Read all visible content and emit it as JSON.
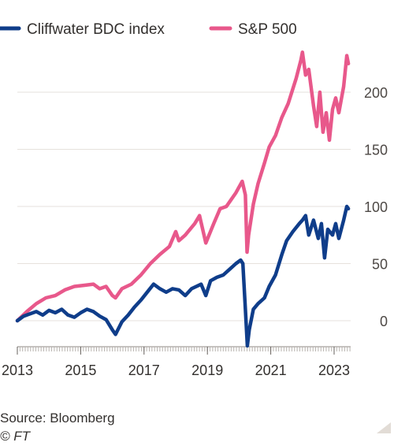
{
  "source": "Source: Bloomberg",
  "copyright": "© FT",
  "chart_data": {
    "type": "line",
    "title": "",
    "xlabel": "",
    "ylabel": "",
    "xlim": [
      2012.9,
      2023.5
    ],
    "ylim": [
      -24,
      240
    ],
    "y_ticks": [
      0,
      50,
      100,
      150,
      200
    ],
    "x_ticks": [
      "2013",
      "2015",
      "2017",
      "2019",
      "2021",
      "2023"
    ],
    "grid": "horizontal",
    "legend_position": "top-left",
    "series": [
      {
        "name": "Cliffwater BDC index",
        "color": "#0f3d8a",
        "points": [
          [
            2013.0,
            0
          ],
          [
            2013.2,
            4
          ],
          [
            2013.4,
            6
          ],
          [
            2013.6,
            8
          ],
          [
            2013.8,
            5
          ],
          [
            2014.0,
            9
          ],
          [
            2014.2,
            7
          ],
          [
            2014.4,
            10
          ],
          [
            2014.6,
            5
          ],
          [
            2014.8,
            3
          ],
          [
            2015.0,
            7
          ],
          [
            2015.2,
            10
          ],
          [
            2015.4,
            8
          ],
          [
            2015.6,
            4
          ],
          [
            2015.8,
            1
          ],
          [
            2016.0,
            -8
          ],
          [
            2016.1,
            -12
          ],
          [
            2016.3,
            -1
          ],
          [
            2016.5,
            5
          ],
          [
            2016.7,
            12
          ],
          [
            2016.9,
            18
          ],
          [
            2017.1,
            25
          ],
          [
            2017.3,
            32
          ],
          [
            2017.5,
            28
          ],
          [
            2017.7,
            25
          ],
          [
            2017.9,
            28
          ],
          [
            2018.1,
            27
          ],
          [
            2018.3,
            22
          ],
          [
            2018.5,
            28
          ],
          [
            2018.8,
            32
          ],
          [
            2018.95,
            22
          ],
          [
            2019.1,
            35
          ],
          [
            2019.3,
            38
          ],
          [
            2019.5,
            40
          ],
          [
            2019.7,
            45
          ],
          [
            2019.9,
            50
          ],
          [
            2020.05,
            53
          ],
          [
            2020.12,
            50
          ],
          [
            2020.2,
            10
          ],
          [
            2020.26,
            -22
          ],
          [
            2020.32,
            -8
          ],
          [
            2020.45,
            10
          ],
          [
            2020.6,
            15
          ],
          [
            2020.8,
            20
          ],
          [
            2020.95,
            30
          ],
          [
            2021.15,
            40
          ],
          [
            2021.35,
            58
          ],
          [
            2021.5,
            70
          ],
          [
            2021.7,
            78
          ],
          [
            2021.9,
            85
          ],
          [
            2022.0,
            88
          ],
          [
            2022.1,
            92
          ],
          [
            2022.2,
            75
          ],
          [
            2022.35,
            88
          ],
          [
            2022.5,
            72
          ],
          [
            2022.6,
            85
          ],
          [
            2022.7,
            55
          ],
          [
            2022.8,
            80
          ],
          [
            2022.95,
            75
          ],
          [
            2023.05,
            85
          ],
          [
            2023.15,
            72
          ],
          [
            2023.3,
            88
          ],
          [
            2023.4,
            100
          ],
          [
            2023.45,
            98
          ]
        ]
      },
      {
        "name": "S&P 500",
        "color": "#e8588b",
        "points": [
          [
            2013.0,
            0
          ],
          [
            2013.3,
            8
          ],
          [
            2013.6,
            15
          ],
          [
            2013.9,
            20
          ],
          [
            2014.2,
            22
          ],
          [
            2014.5,
            27
          ],
          [
            2014.8,
            30
          ],
          [
            2015.1,
            31
          ],
          [
            2015.4,
            32
          ],
          [
            2015.6,
            28
          ],
          [
            2015.8,
            30
          ],
          [
            2016.0,
            22
          ],
          [
            2016.1,
            20
          ],
          [
            2016.3,
            28
          ],
          [
            2016.6,
            32
          ],
          [
            2016.9,
            40
          ],
          [
            2017.2,
            50
          ],
          [
            2017.5,
            58
          ],
          [
            2017.8,
            65
          ],
          [
            2018.0,
            78
          ],
          [
            2018.1,
            70
          ],
          [
            2018.3,
            75
          ],
          [
            2018.6,
            85
          ],
          [
            2018.75,
            92
          ],
          [
            2018.95,
            68
          ],
          [
            2019.2,
            85
          ],
          [
            2019.4,
            98
          ],
          [
            2019.6,
            100
          ],
          [
            2019.9,
            112
          ],
          [
            2020.1,
            122
          ],
          [
            2020.2,
            110
          ],
          [
            2020.25,
            60
          ],
          [
            2020.3,
            75
          ],
          [
            2020.45,
            102
          ],
          [
            2020.6,
            120
          ],
          [
            2020.8,
            138
          ],
          [
            2020.95,
            152
          ],
          [
            2021.15,
            162
          ],
          [
            2021.35,
            178
          ],
          [
            2021.55,
            190
          ],
          [
            2021.8,
            212
          ],
          [
            2021.95,
            228
          ],
          [
            2022.0,
            235
          ],
          [
            2022.1,
            215
          ],
          [
            2022.2,
            220
          ],
          [
            2022.35,
            188
          ],
          [
            2022.45,
            170
          ],
          [
            2022.55,
            200
          ],
          [
            2022.65,
            165
          ],
          [
            2022.75,
            182
          ],
          [
            2022.85,
            158
          ],
          [
            2022.95,
            185
          ],
          [
            2023.05,
            195
          ],
          [
            2023.15,
            182
          ],
          [
            2023.3,
            205
          ],
          [
            2023.4,
            232
          ],
          [
            2023.45,
            225
          ]
        ]
      }
    ]
  }
}
